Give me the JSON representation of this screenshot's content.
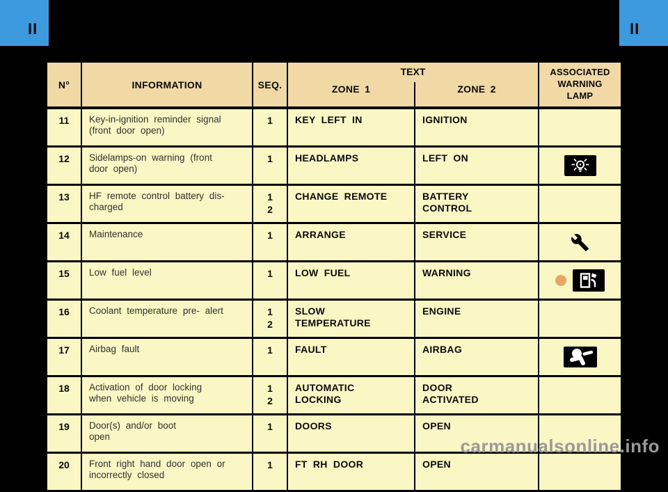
{
  "page": {
    "section_marker_left": "II",
    "section_marker_right": "II",
    "watermark": "carmanualsonline.info"
  },
  "colors": {
    "accent_blue": "#3D9ADE",
    "page_background": "#000000",
    "header_background": "#F0D9A4",
    "row_background": "#FAF7C4",
    "amber_dot": "#E8A568",
    "watermark_gray": "#9A9A9A"
  },
  "table": {
    "headers": {
      "num": "N°",
      "information": "INFORMATION",
      "seq": "SEQ.",
      "text_group": "TEXT",
      "zone1": "ZONE 1",
      "zone2": "ZONE 2",
      "lamp": "ASSOCIATED\nWARNING\nLAMP"
    },
    "rows": [
      {
        "num": "11",
        "information": "Key-in-ignition reminder signal\n(front door open)",
        "seq": "1",
        "zone1": "KEY LEFT IN",
        "zone2": "IGNITION",
        "lamp": null,
        "lamp_dot": false
      },
      {
        "num": "12",
        "information": "Sidelamps-on warning (front\ndoor open)",
        "seq": "1",
        "zone1": "HEADLAMPS",
        "zone2": "LEFT ON",
        "lamp": "sidelamps-icon",
        "lamp_dot": false
      },
      {
        "num": "13",
        "information": "HF remote control battery dis-\ncharged",
        "seq": "1\n2",
        "zone1": "CHANGE REMOTE",
        "zone2": "BATTERY\nCONTROL",
        "lamp": null,
        "lamp_dot": false
      },
      {
        "num": "14",
        "information": "Maintenance",
        "seq": "1",
        "zone1": "ARRANGE",
        "zone2": "SERVICE",
        "lamp": "wrench-icon",
        "lamp_dot": false
      },
      {
        "num": "15",
        "information": "Low fuel level",
        "seq": "1",
        "zone1": "LOW FUEL",
        "zone2": "WARNING",
        "lamp": "fuel-pump-icon",
        "lamp_dot": true
      },
      {
        "num": "16",
        "information": "Coolant temperature pre- alert",
        "seq": "1\n2",
        "zone1": "SLOW\nTEMPERATURE",
        "zone2": "ENGINE",
        "lamp": null,
        "lamp_dot": false
      },
      {
        "num": "17",
        "information": "Airbag fault",
        "seq": "1",
        "zone1": "FAULT",
        "zone2": "AIRBAG",
        "lamp": "airbag-icon",
        "lamp_dot": false
      },
      {
        "num": "18",
        "information": "Activation of door locking\nwhen vehicle is moving",
        "seq": "1\n2",
        "zone1": "AUTOMATIC\nLOCKING",
        "zone2": "DOOR\nACTIVATED",
        "lamp": null,
        "lamp_dot": false
      },
      {
        "num": "19",
        "information": "Door(s) and/or boot\nopen",
        "seq": "1",
        "zone1": "DOORS",
        "zone2": "OPEN",
        "lamp": null,
        "lamp_dot": false
      },
      {
        "num": "20",
        "information": "Front right hand door open or\nincorrectly closed",
        "seq": "1",
        "zone1": "FT RH DOOR",
        "zone2": "OPEN",
        "lamp": null,
        "lamp_dot": false
      }
    ]
  }
}
